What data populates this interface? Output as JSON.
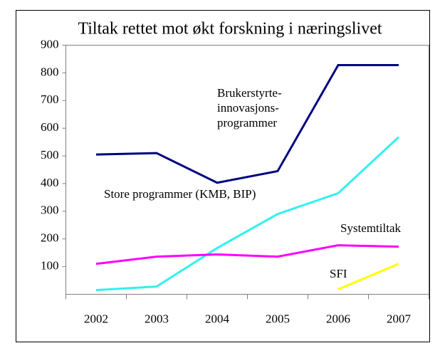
{
  "chart_data": {
    "type": "line",
    "title": "Tiltak rettet mot økt forskning i næringslivet",
    "categories": [
      "2002",
      "2003",
      "2004",
      "2005",
      "2006",
      "2007"
    ],
    "series": [
      {
        "name": "Brukerstyrte-innovasjons-programmer",
        "color": "#000080",
        "values": [
          505,
          510,
          403,
          445,
          828,
          828
        ]
      },
      {
        "name": "Store programmer (KMB, BIP)",
        "color": "#33f0f0",
        "values": [
          15,
          28,
          167,
          290,
          365,
          568
        ]
      },
      {
        "name": "Systemtiltak",
        "color": "#ff00ff",
        "values": [
          110,
          136,
          144,
          136,
          177,
          172
        ]
      },
      {
        "name": "SFI",
        "color": "#ffff00",
        "values": [
          null,
          null,
          null,
          null,
          18,
          110
        ]
      }
    ],
    "ylim": [
      0,
      900
    ],
    "yticks": [
      100,
      200,
      300,
      400,
      500,
      600,
      700,
      800,
      900
    ],
    "grid": false
  }
}
